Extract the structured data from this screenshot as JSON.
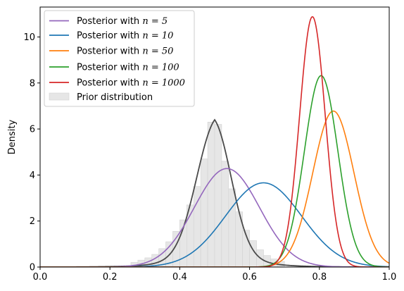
{
  "chart_data": {
    "type": "line",
    "title": "",
    "xlabel": "",
    "ylabel": "Density",
    "xlim": [
      0.0,
      1.0
    ],
    "ylim": [
      0,
      11.3
    ],
    "x_ticks": [
      0.0,
      0.2,
      0.4,
      0.6,
      0.8,
      1.0
    ],
    "x_tick_labels": [
      "0.0",
      "0.2",
      "0.4",
      "0.6",
      "0.8",
      "1.0"
    ],
    "y_ticks": [
      0,
      2,
      4,
      6,
      8,
      10
    ],
    "y_tick_labels": [
      "0",
      "2",
      "4",
      "6",
      "8",
      "10"
    ],
    "grid": false,
    "legend_position": "upper-left",
    "series": [
      {
        "name": "Posterior with n = 5",
        "legend_prefix": "Posterior with ",
        "legend_math": "n = 5",
        "color": "#9467bd",
        "distribution": "normal",
        "mean": 0.535,
        "peak": 4.28
      },
      {
        "name": "Posterior with n = 10",
        "legend_prefix": "Posterior with ",
        "legend_math": "n = 10",
        "color": "#1f77b4",
        "distribution": "normal",
        "mean": 0.64,
        "peak": 3.66
      },
      {
        "name": "Posterior with n = 50",
        "legend_prefix": "Posterior with ",
        "legend_math": "n = 50",
        "color": "#ff7f0e",
        "distribution": "normal",
        "mean": 0.84,
        "peak": 6.78
      },
      {
        "name": "Posterior with n = 100",
        "legend_prefix": "Posterior with ",
        "legend_math": "n = 100",
        "color": "#2ca02c",
        "distribution": "normal",
        "mean": 0.805,
        "peak": 8.32
      },
      {
        "name": "Posterior with n = 1000",
        "legend_prefix": "Posterior with ",
        "legend_math": "n = 1000",
        "color": "#d62728",
        "distribution": "normal",
        "mean": 0.78,
        "peak": 10.88
      }
    ],
    "prior": {
      "name": "Prior distribution",
      "histogram_color": "#e6e6e6",
      "kde_color": "#4a4a4a",
      "kde_peak": 6.4,
      "kde_mode": 0.5,
      "bins": [
        {
          "x0": 0.26,
          "x1": 0.28,
          "density": 0.2
        },
        {
          "x0": 0.28,
          "x1": 0.3,
          "density": 0.3
        },
        {
          "x0": 0.3,
          "x1": 0.32,
          "density": 0.4
        },
        {
          "x0": 0.32,
          "x1": 0.34,
          "density": 0.55
        },
        {
          "x0": 0.34,
          "x1": 0.36,
          "density": 0.8
        },
        {
          "x0": 0.36,
          "x1": 0.38,
          "density": 1.1
        },
        {
          "x0": 0.38,
          "x1": 0.4,
          "density": 1.55
        },
        {
          "x0": 0.4,
          "x1": 0.42,
          "density": 2.05
        },
        {
          "x0": 0.42,
          "x1": 0.44,
          "density": 2.7
        },
        {
          "x0": 0.44,
          "x1": 0.46,
          "density": 3.5
        },
        {
          "x0": 0.46,
          "x1": 0.48,
          "density": 4.7
        },
        {
          "x0": 0.48,
          "x1": 0.5,
          "density": 6.3
        },
        {
          "x0": 0.5,
          "x1": 0.52,
          "density": 6.2
        },
        {
          "x0": 0.52,
          "x1": 0.54,
          "density": 4.6
        },
        {
          "x0": 0.54,
          "x1": 0.56,
          "density": 3.4
        },
        {
          "x0": 0.56,
          "x1": 0.58,
          "density": 2.4
        },
        {
          "x0": 0.58,
          "x1": 0.6,
          "density": 1.6
        },
        {
          "x0": 0.6,
          "x1": 0.62,
          "density": 1.15
        },
        {
          "x0": 0.62,
          "x1": 0.64,
          "density": 0.75
        },
        {
          "x0": 0.64,
          "x1": 0.66,
          "density": 0.5
        },
        {
          "x0": 0.66,
          "x1": 0.68,
          "density": 0.35
        },
        {
          "x0": 0.68,
          "x1": 0.7,
          "density": 0.25
        }
      ]
    }
  }
}
